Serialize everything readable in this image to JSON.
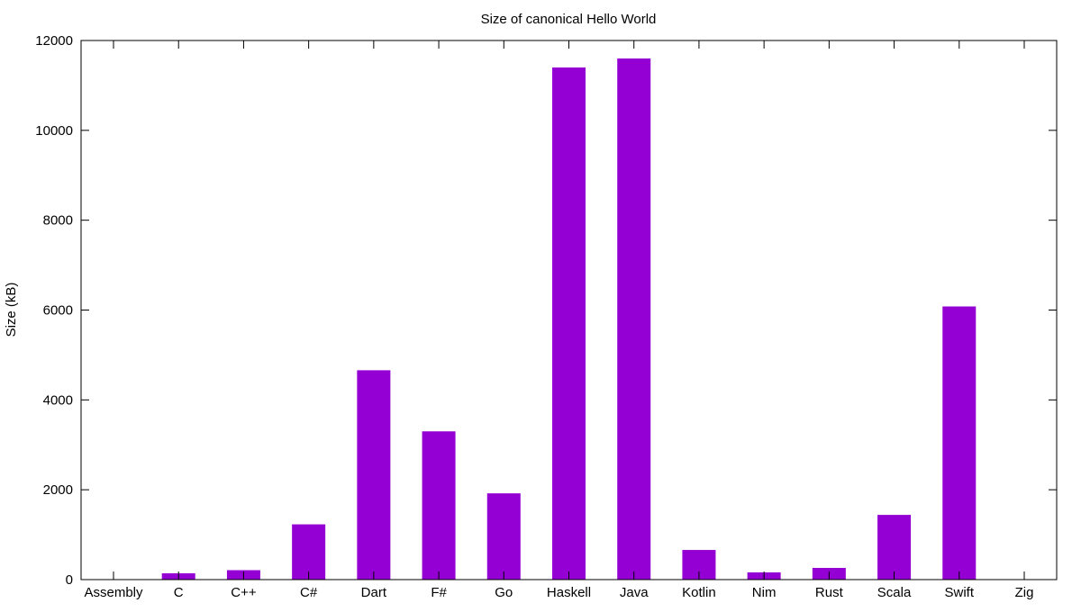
{
  "chart_data": {
    "type": "bar",
    "title": "Size of canonical Hello World",
    "xlabel": "",
    "ylabel": "Size (kB)",
    "ylim": [
      0,
      12000
    ],
    "yticks": [
      0,
      2000,
      4000,
      6000,
      8000,
      10000,
      12000
    ],
    "grid": false,
    "legend": "none",
    "categories": [
      "Assembly",
      "C",
      "C++",
      "C#",
      "Dart",
      "F#",
      "Go",
      "Haskell",
      "Java",
      "Kotlin",
      "Nim",
      "Rust",
      "Scala",
      "Swift",
      "Zig"
    ],
    "values": [
      8,
      140,
      210,
      1230,
      4660,
      3300,
      1920,
      11400,
      11600,
      660,
      160,
      260,
      1440,
      6080,
      10
    ],
    "colors": {
      "bar": "#9400d3",
      "axis": "#000000",
      "background": "#ffffff"
    }
  }
}
